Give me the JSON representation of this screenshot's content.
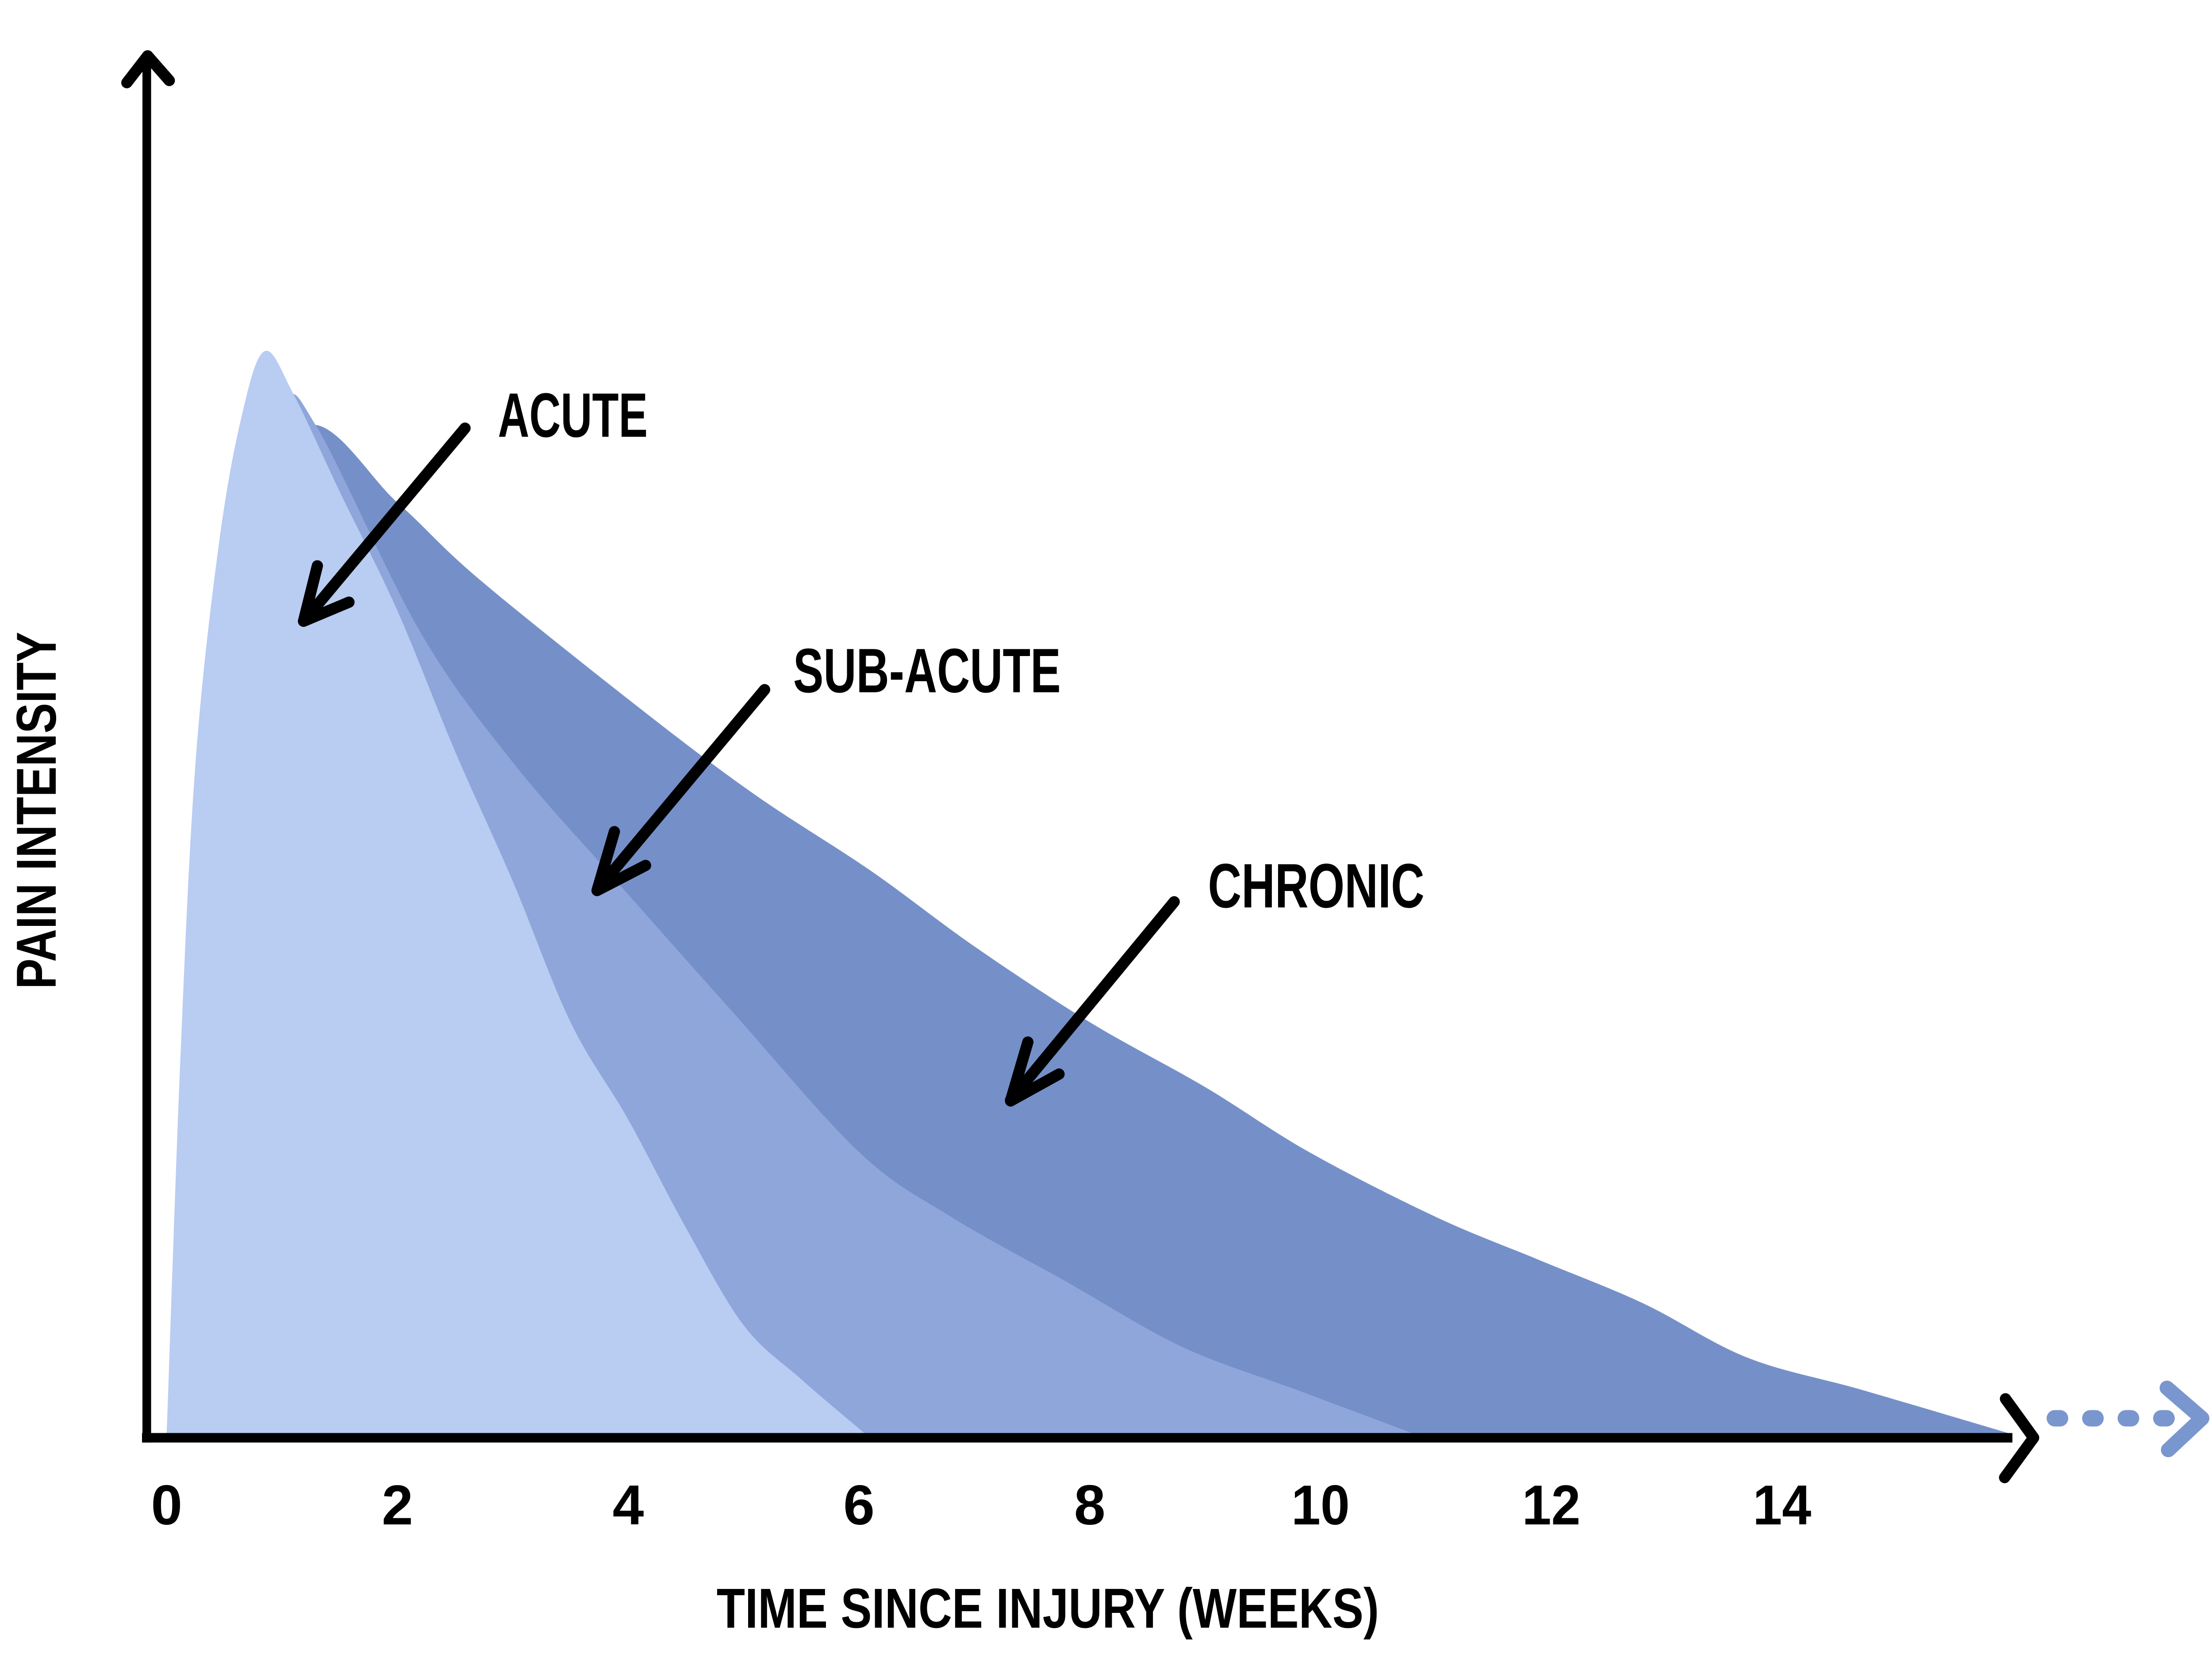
{
  "chart_data": {
    "type": "area",
    "xlabel": "TIME SINCE INJURY (WEEKS)",
    "ylabel": "PAIN INTENSITY",
    "x_ticks": [
      "0",
      "2",
      "4",
      "6",
      "8",
      "10",
      "12",
      "14"
    ],
    "x_axis_range_weeks": [
      0,
      16
    ],
    "y_axis_tick_labels": "none (unlabeled relative intensity, values below are 0-100 relative units)",
    "legend_position": "none (series labeled by annotation arrows)",
    "grid": "off",
    "series": [
      {
        "name": "CHRONIC",
        "color": "#7590c9",
        "x": [
          0,
          0.12,
          0.3,
          0.6,
          1.2,
          2.0,
          2.7,
          4.1,
          5.1,
          6.1,
          7.0,
          8.0,
          9.0,
          9.9,
          11.0,
          11.9,
          12.8,
          13.7,
          14.7,
          15.97
        ],
        "values": [
          0,
          28,
          55,
          78,
          93,
          86,
          79,
          67,
          59,
          52,
          45,
          38,
          32,
          26,
          20,
          16,
          12,
          7,
          4,
          0
        ]
      },
      {
        "name": "SUB-ACUTE",
        "color": "#8fa6db",
        "x": [
          0,
          0.12,
          0.3,
          0.6,
          1.0,
          1.3,
          2.2,
          3.0,
          3.9,
          4.9,
          6.0,
          6.8,
          7.8,
          8.8,
          9.8,
          10.8
        ],
        "values": [
          0,
          30,
          58,
          83,
          95,
          93,
          74,
          62,
          51,
          39,
          26,
          20,
          14,
          8,
          4,
          0
        ]
      },
      {
        "name": "ACUTE",
        "color": "#b9ccf2",
        "x": [
          0,
          0.12,
          0.25,
          0.45,
          0.65,
          0.85,
          1.1,
          1.5,
          2.0,
          2.5,
          3.0,
          3.5,
          4.0,
          4.5,
          5.0,
          5.5,
          6.05
        ],
        "values": [
          0,
          35,
          62,
          82,
          94,
          100,
          96,
          87,
          76,
          63,
          51,
          38,
          29,
          19,
          10,
          5,
          0
        ]
      }
    ],
    "continuation_arrow": {
      "icon": "dashed-arrow-right-icon",
      "color": "#7a96ce"
    }
  },
  "colors": {
    "background": "#ffffff",
    "axis": "#000000",
    "annotation_text": "#000000"
  }
}
